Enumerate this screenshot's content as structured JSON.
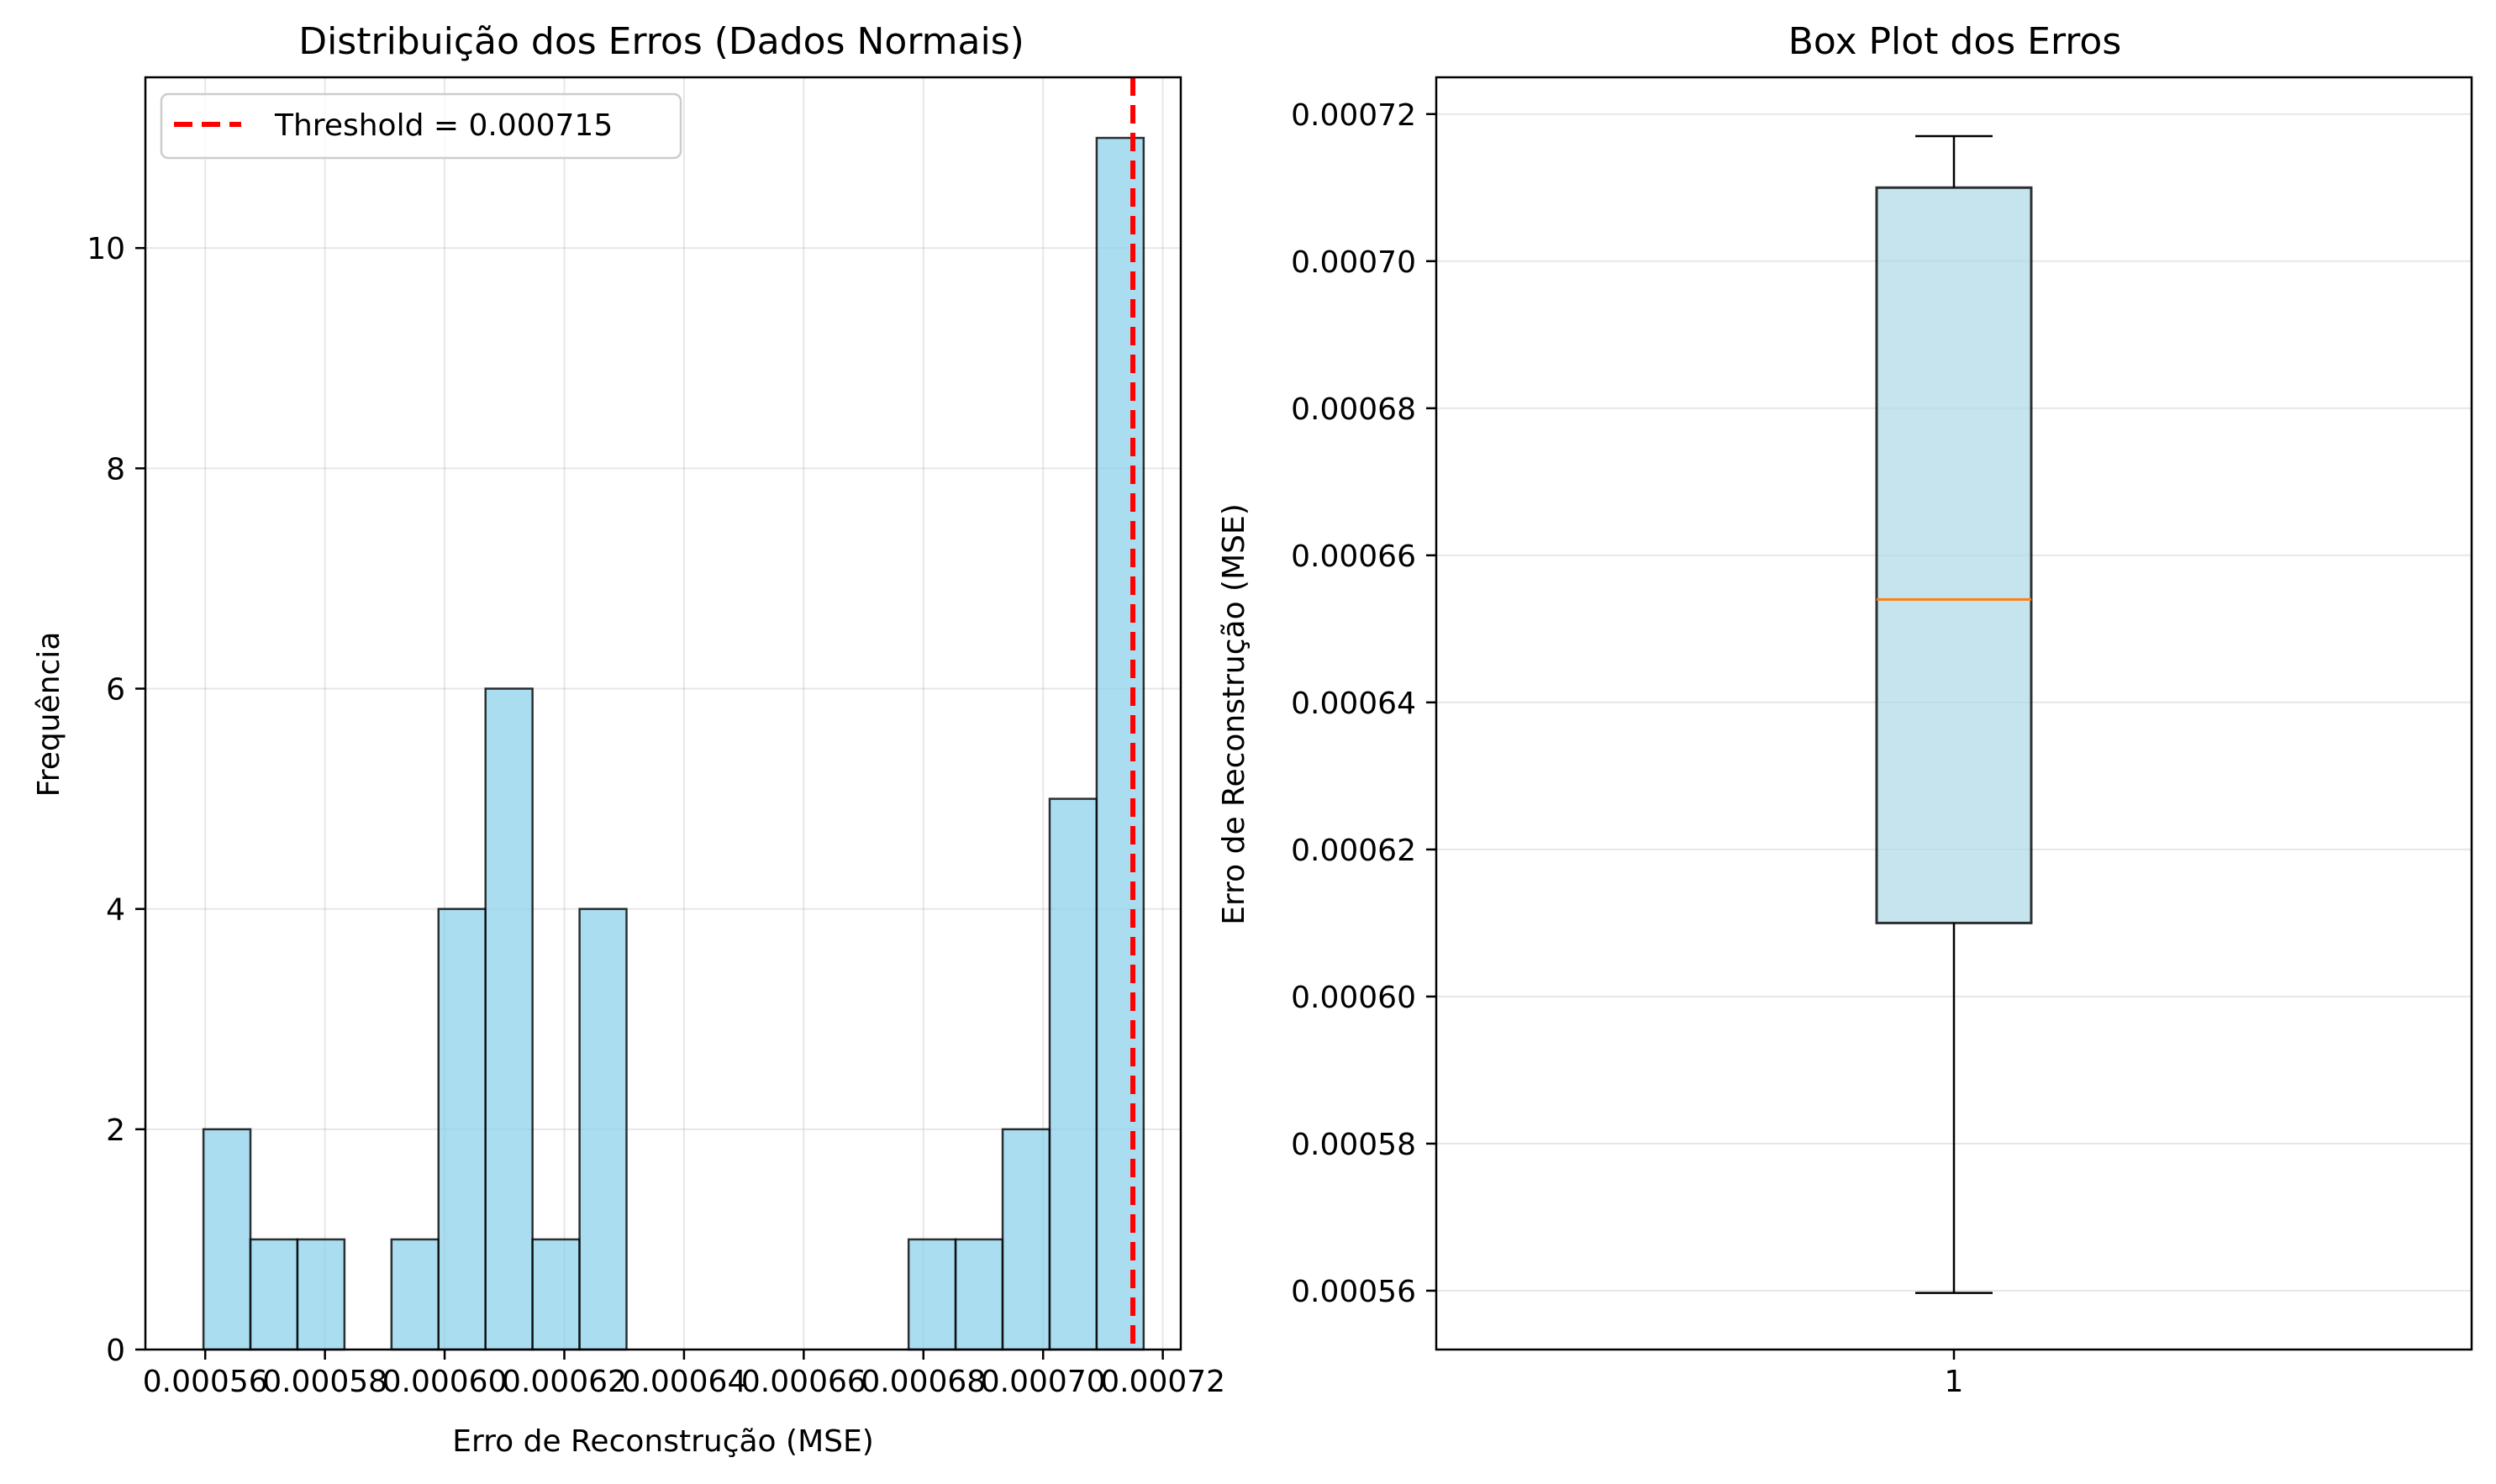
{
  "chart_data": [
    {
      "type": "bar",
      "title": "Distribuição dos Erros (Dados Normais)",
      "xlabel": "Erro de Reconstrução (MSE)",
      "ylabel": "Frequência",
      "xlim": [
        0.00055,
        0.000723
      ],
      "ylim": [
        0,
        11.55
      ],
      "xticks": [
        0.00056,
        0.00058,
        0.0006,
        0.00062,
        0.00064,
        0.00066,
        0.00068,
        0.0007,
        0.00072
      ],
      "xtick_labels": [
        "0.00056",
        "0.00058",
        "0.00060",
        "0.00062",
        "0.00064",
        "0.00066",
        "0.00068",
        "0.00070",
        "0.00072"
      ],
      "yticks": [
        0,
        2,
        4,
        6,
        8,
        10
      ],
      "ytick_labels": [
        "0",
        "2",
        "4",
        "6",
        "8",
        "10"
      ],
      "grid": true,
      "bins_start": 0.0005597,
      "bin_width": 7.855e-06,
      "counts": [
        2,
        1,
        1,
        0,
        1,
        4,
        6,
        1,
        4,
        0,
        0,
        0,
        0,
        0,
        0,
        1,
        1,
        2,
        5,
        11
      ],
      "bar_color": "#87ceeb",
      "edge_color": "#000000",
      "threshold": 0.000715,
      "threshold_color": "#ff0000",
      "legend": {
        "label": "Threshold = 0.000715",
        "location": "upper-left"
      }
    },
    {
      "type": "box",
      "title": "Box Plot dos Erros",
      "xlabel": "",
      "ylabel": "Erro de Reconstrução (MSE)",
      "ylim": [
        0.000552,
        0.000725
      ],
      "yticks": [
        0.00056,
        0.00058,
        0.0006,
        0.00062,
        0.00064,
        0.00066,
        0.00068,
        0.0007,
        0.00072
      ],
      "ytick_labels": [
        "0.00056",
        "0.00058",
        "0.00060",
        "0.00062",
        "0.00064",
        "0.00066",
        "0.00068",
        "0.00070",
        "0.00072"
      ],
      "xtick_labels": [
        "1"
      ],
      "grid": true,
      "box": {
        "whisker_low": 0.0005597,
        "q1": 0.00061,
        "median": 0.000654,
        "q3": 0.00071,
        "whisker_high": 0.000717
      },
      "box_color": "#add8e6",
      "median_color": "#ff7f0e"
    }
  ]
}
